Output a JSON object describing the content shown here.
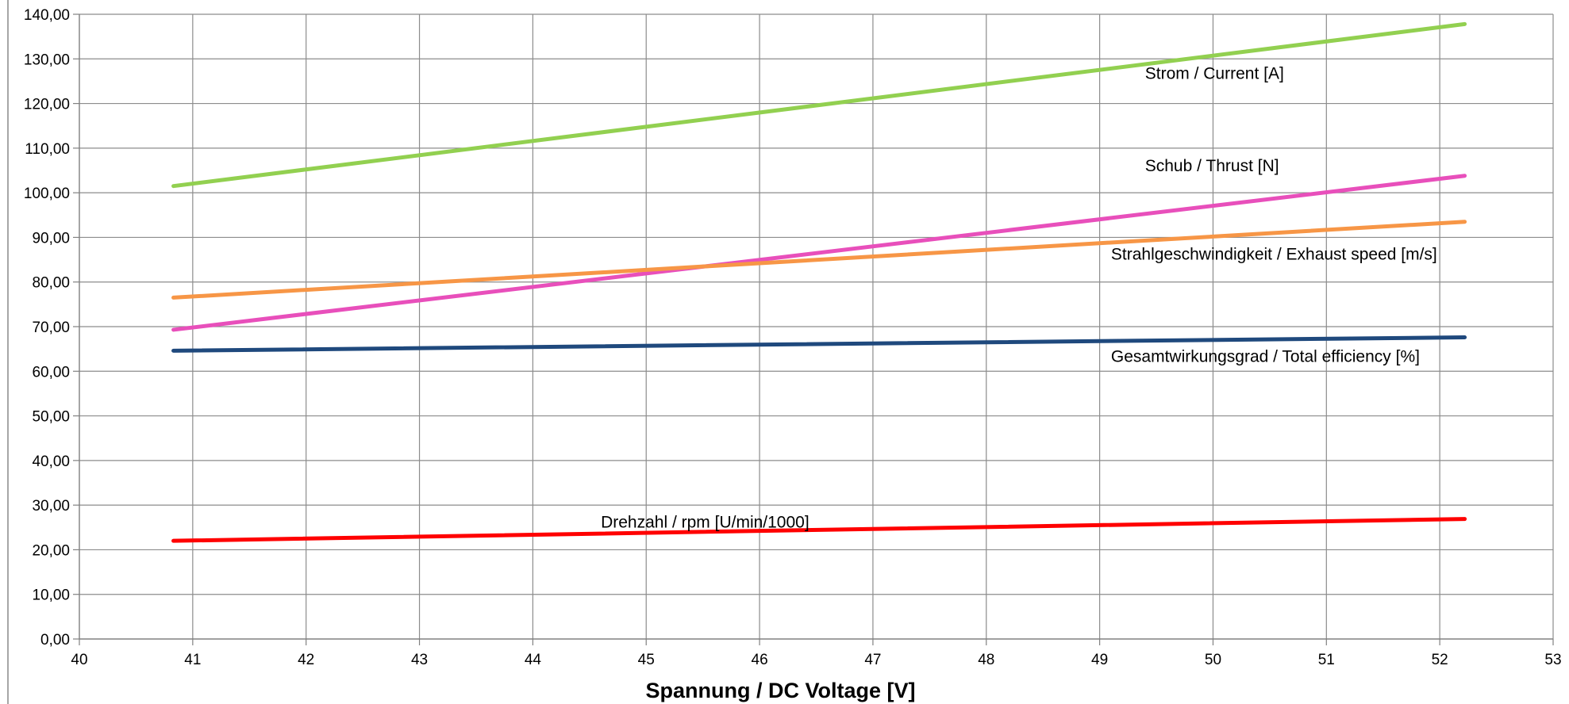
{
  "chart_data": {
    "type": "line",
    "title": "",
    "xlabel": "Spannung / DC Voltage [V]",
    "ylabel": "",
    "xlim": [
      40,
      53
    ],
    "ylim": [
      0,
      140
    ],
    "x_ticks": [
      40,
      41,
      42,
      43,
      44,
      45,
      46,
      47,
      48,
      49,
      50,
      51,
      52,
      53
    ],
    "x_tick_labels": [
      "40",
      "41",
      "42",
      "43",
      "44",
      "45",
      "46",
      "47",
      "48",
      "49",
      "50",
      "51",
      "52",
      "53"
    ],
    "y_ticks": [
      0,
      10,
      20,
      30,
      40,
      50,
      60,
      70,
      80,
      90,
      100,
      110,
      120,
      130,
      140
    ],
    "y_tick_labels": [
      "0,00",
      "10,00",
      "20,00",
      "30,00",
      "40,00",
      "50,00",
      "60,00",
      "70,00",
      "80,00",
      "90,00",
      "100,00",
      "110,00",
      "120,00",
      "130,00",
      "140,00"
    ],
    "grid": true,
    "legend": "none",
    "series": [
      {
        "name": "Strom / Current [A]",
        "color": "#92d050",
        "x": [
          40.83,
          52.22
        ],
        "values": [
          101.5,
          137.8
        ]
      },
      {
        "name": "Schub / Thrust [N]",
        "color": "#e84fbb",
        "x": [
          40.83,
          52.22
        ],
        "values": [
          69.3,
          103.8
        ]
      },
      {
        "name": "Strahlgeschwindigkeit / Exhaust speed [m/s]",
        "color": "#f79646",
        "x": [
          40.83,
          52.22
        ],
        "values": [
          76.5,
          93.5
        ]
      },
      {
        "name": "Gesamtwirkungsgrad / Total efficiency [%]",
        "color": "#1f497d",
        "x": [
          40.83,
          52.22
        ],
        "values": [
          64.6,
          67.6
        ]
      },
      {
        "name": "Drehzahl / rpm [U/min/1000]",
        "color": "#ff0000",
        "x": [
          40.83,
          52.22
        ],
        "values": [
          22.0,
          26.9
        ]
      }
    ],
    "annotations": [
      {
        "text": "Strom / Current [A]",
        "x": 49.4,
        "y": 125.5,
        "anchor": "start"
      },
      {
        "text": "Schub / Thrust [N]",
        "x": 49.4,
        "y": 104.8,
        "anchor": "start"
      },
      {
        "text": "Strahlgeschwindigkeit / Exhaust speed [m/s]",
        "x": 49.1,
        "y": 85.0,
        "anchor": "start"
      },
      {
        "text": "Gesamtwirkungsgrad / Total efficiency [%]",
        "x": 49.1,
        "y": 62.1,
        "anchor": "start"
      },
      {
        "text": "Drehzahl / rpm [U/min/1000]",
        "x": 44.6,
        "y": 25.0,
        "anchor": "start"
      }
    ]
  }
}
